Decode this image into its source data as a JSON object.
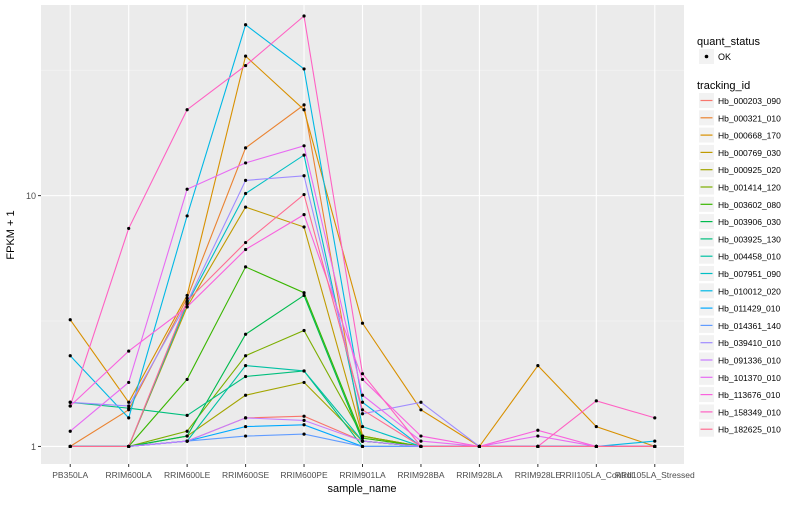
{
  "chart_data": {
    "type": "line",
    "xlabel": "sample_name",
    "ylabel": "FPKM + 1",
    "y_scale": "log10",
    "ylim": [
      1,
      50
    ],
    "y_ticks": [
      1,
      10
    ],
    "y_tick_labels": [
      "1",
      "10"
    ],
    "grid": true,
    "legend_position": "right",
    "categories": [
      "PB350LA",
      "RRIM600LA",
      "RRIM600LE",
      "RRIM600SE",
      "RRIM600PE",
      "RRIM901LA",
      "RRIM928BA",
      "RRIM928LA",
      "RRIM928LE",
      "RRII105LA_Control",
      "RRII105LA_Stressed"
    ],
    "point_legend": {
      "title": "quant_status",
      "entries": [
        {
          "label": "OK",
          "color": "#000000"
        }
      ]
    },
    "color_legend_title": "tracking_id",
    "series": [
      {
        "name": "Hb_000203_090",
        "color": "#F8766D",
        "values": [
          1.0,
          1.0,
          1.05,
          1.3,
          1.32,
          1.05,
          1.0,
          1.0,
          1.0,
          1.0,
          1.0
        ]
      },
      {
        "name": "Hb_000321_010",
        "color": "#EA8331",
        "values": [
          1.0,
          1.4,
          3.9,
          15.5,
          23.0,
          1.1,
          1.0,
          1.0,
          1.0,
          1.0,
          1.0
        ]
      },
      {
        "name": "Hb_000668_170",
        "color": "#D89000",
        "values": [
          3.2,
          1.5,
          4.0,
          36.0,
          22.0,
          3.1,
          1.4,
          1.0,
          2.1,
          1.2,
          1.0
        ]
      },
      {
        "name": "Hb_000769_030",
        "color": "#C09B00",
        "values": [
          1.0,
          1.0,
          3.6,
          9.0,
          7.5,
          1.1,
          1.0,
          1.0,
          1.0,
          1.0,
          1.0
        ]
      },
      {
        "name": "Hb_000925_020",
        "color": "#A3A500",
        "values": [
          1.0,
          1.0,
          1.1,
          1.6,
          1.8,
          1.05,
          1.0,
          1.0,
          1.0,
          1.0,
          1.0
        ]
      },
      {
        "name": "Hb_001414_120",
        "color": "#7CAE00",
        "values": [
          1.0,
          1.0,
          1.15,
          2.3,
          2.9,
          1.1,
          1.0,
          1.0,
          1.0,
          1.0,
          1.0
        ]
      },
      {
        "name": "Hb_003602_080",
        "color": "#39B600",
        "values": [
          1.0,
          1.0,
          1.85,
          5.2,
          4.1,
          1.08,
          1.0,
          1.0,
          1.0,
          1.0,
          1.0
        ]
      },
      {
        "name": "Hb_003906_030",
        "color": "#00BB4E",
        "values": [
          1.0,
          1.0,
          1.1,
          2.8,
          4.0,
          1.05,
          1.0,
          1.0,
          1.0,
          1.0,
          1.0
        ]
      },
      {
        "name": "Hb_003925_130",
        "color": "#00BF7D",
        "values": [
          1.5,
          1.42,
          1.33,
          1.9,
          2.0,
          1.0,
          1.0,
          1.0,
          1.0,
          1.0,
          1.0
        ]
      },
      {
        "name": "Hb_004458_010",
        "color": "#00C1A3",
        "values": [
          1.0,
          1.0,
          1.05,
          2.1,
          2.0,
          1.05,
          1.0,
          1.0,
          1.0,
          1.0,
          1.0
        ]
      },
      {
        "name": "Hb_007951_090",
        "color": "#00BFC4",
        "values": [
          1.0,
          1.0,
          3.7,
          10.2,
          14.5,
          1.2,
          1.0,
          1.0,
          1.0,
          1.0,
          1.0
        ]
      },
      {
        "name": "Hb_010012_020",
        "color": "#00B8E5",
        "values": [
          2.3,
          1.3,
          8.3,
          48.0,
          32.0,
          1.5,
          1.0,
          1.0,
          1.0,
          1.0,
          1.05
        ]
      },
      {
        "name": "Hb_011429_010",
        "color": "#00A9FF",
        "values": [
          1.0,
          1.0,
          1.05,
          1.2,
          1.22,
          1.0,
          1.0,
          1.0,
          1.0,
          1.0,
          1.0
        ]
      },
      {
        "name": "Hb_014361_140",
        "color": "#619CFF",
        "values": [
          1.0,
          1.0,
          1.05,
          1.1,
          1.12,
          1.0,
          1.0,
          1.0,
          1.0,
          1.0,
          1.0
        ]
      },
      {
        "name": "Hb_039410_010",
        "color": "#9F8CFF",
        "values": [
          1.5,
          1.45,
          3.75,
          11.5,
          12.0,
          1.35,
          1.5,
          1.0,
          1.0,
          1.0,
          1.0
        ]
      },
      {
        "name": "Hb_091336_010",
        "color": "#C77CFF",
        "values": [
          1.0,
          1.0,
          1.05,
          1.3,
          1.27,
          1.05,
          1.0,
          1.0,
          1.0,
          1.0,
          1.0
        ]
      },
      {
        "name": "Hb_101370_010",
        "color": "#E76BF3",
        "values": [
          1.15,
          1.8,
          10.6,
          13.5,
          15.8,
          1.6,
          1.05,
          1.0,
          1.1,
          1.0,
          1.0
        ]
      },
      {
        "name": "Hb_113676_010",
        "color": "#F962DD",
        "values": [
          1.45,
          2.4,
          3.6,
          6.1,
          8.4,
          1.85,
          1.1,
          1.0,
          1.16,
          1.0,
          1.0
        ]
      },
      {
        "name": "Hb_158349_010",
        "color": "#FF61C3",
        "values": [
          1.45,
          7.4,
          22.0,
          33.0,
          52.0,
          1.95,
          1.0,
          1.0,
          1.0,
          1.52,
          1.3
        ]
      },
      {
        "name": "Hb_182625_010",
        "color": "#FF6C91",
        "values": [
          1.0,
          1.0,
          3.8,
          6.5,
          10.1,
          1.4,
          1.0,
          1.0,
          1.0,
          1.0,
          1.0
        ]
      }
    ]
  }
}
